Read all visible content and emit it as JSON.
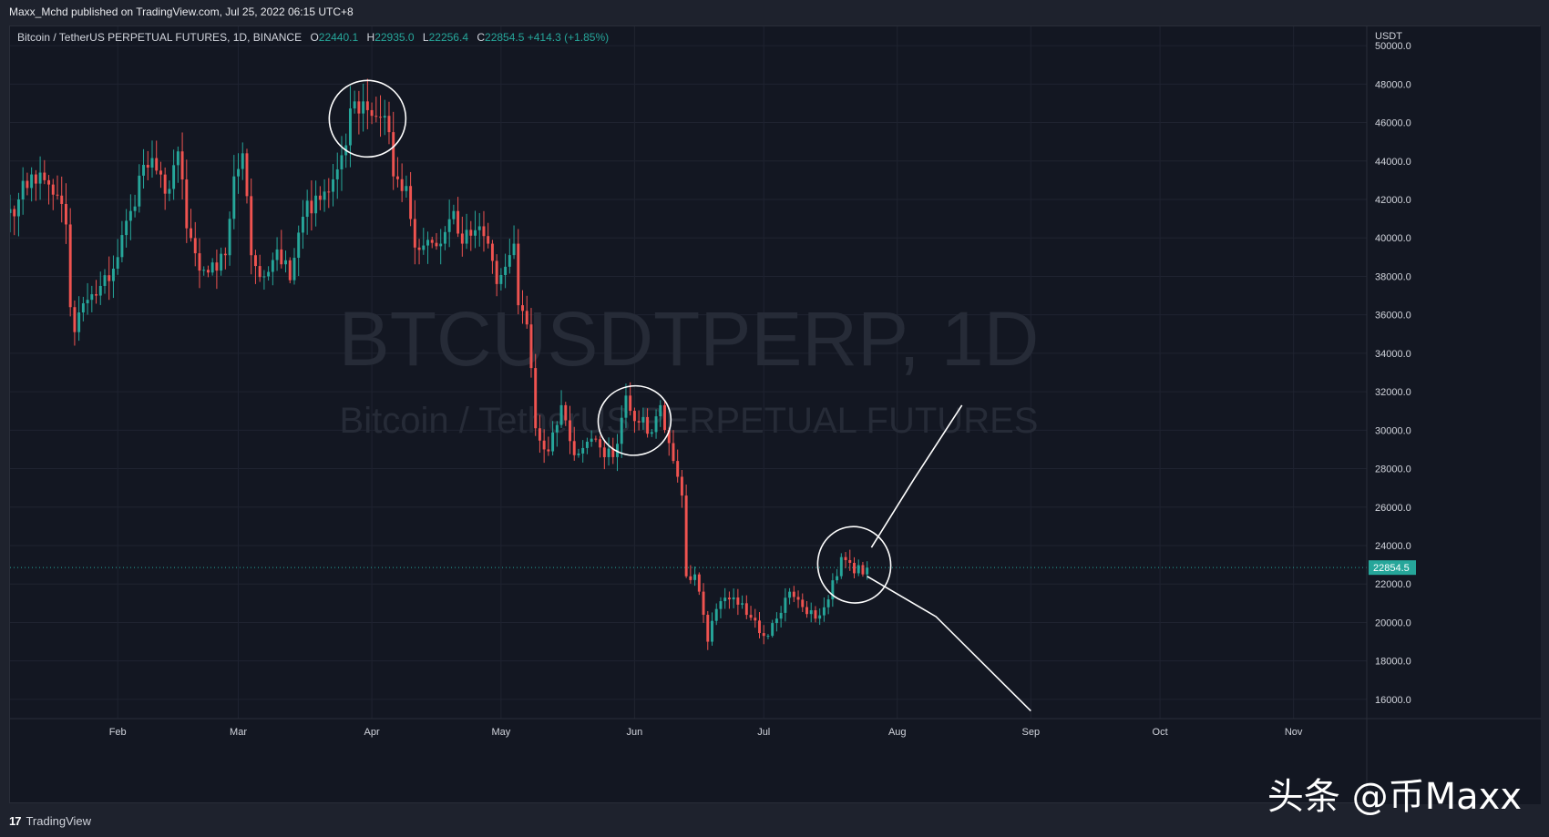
{
  "header": {
    "published": "Maxx_Mchd published on TradingView.com, Jul 25, 2022 06:15 UTC+8"
  },
  "legend": {
    "symbol": "Bitcoin / TetherUS PERPETUAL FUTURES, 1D, BINANCE",
    "o_label": "O",
    "o": "22440.1",
    "h_label": "H",
    "h": "22935.0",
    "l_label": "L",
    "l": "22256.4",
    "c_label": "C",
    "c": "22854.5",
    "change": "+414.3 (+1.85%)"
  },
  "watermark": {
    "main": "BTCUSDTPERP, 1D",
    "sub": "Bitcoin / TetherUS PERPETUAL FUTURES"
  },
  "footer": {
    "logo": "17",
    "label": "TradingView"
  },
  "brand": "头条 @币Maxx",
  "colors": {
    "up": "#26a69a",
    "down": "#ef5350",
    "background": "#131722",
    "text": "#d1d4dc"
  },
  "chart_data": {
    "type": "candlestick",
    "currency_label": "USDT",
    "last_price": "22854.5",
    "last_price_value": 22854.5,
    "y_ticks": [
      50000.0,
      48000.0,
      46000.0,
      44000.0,
      42000.0,
      40000.0,
      38000.0,
      36000.0,
      34000.0,
      32000.0,
      30000.0,
      28000.0,
      26000.0,
      24000.0,
      22000.0,
      20000.0,
      18000.0,
      16000.0
    ],
    "y_tick_labels": [
      "50000.0",
      "48000.0",
      "46000.0",
      "44000.0",
      "42000.0",
      "40000.0",
      "38000.0",
      "36000.0",
      "34000.0",
      "32000.0",
      "30000.0",
      "28000.0",
      "26000.0",
      "24000.0",
      "22000.0",
      "20000.0",
      "18000.0",
      "16000.0"
    ],
    "ylim": [
      15000,
      51000
    ],
    "x_start": "2022-01-07",
    "x_end": "2022-11-18",
    "x_ticks": [
      {
        "label": "Feb",
        "date": "2022-02-01"
      },
      {
        "label": "Mar",
        "date": "2022-03-01"
      },
      {
        "label": "Apr",
        "date": "2022-04-01"
      },
      {
        "label": "May",
        "date": "2022-05-01"
      },
      {
        "label": "Jun",
        "date": "2022-06-01"
      },
      {
        "label": "Jul",
        "date": "2022-07-01"
      },
      {
        "label": "Aug",
        "date": "2022-08-01"
      },
      {
        "label": "Sep",
        "date": "2022-09-01"
      },
      {
        "label": "Oct",
        "date": "2022-10-01"
      },
      {
        "label": "Nov",
        "date": "2022-11-01"
      }
    ],
    "close_path": [
      [
        "2022-01-07",
        41500
      ],
      [
        "2022-01-09",
        42000
      ],
      [
        "2022-01-12",
        43300
      ],
      [
        "2022-01-15",
        43000
      ],
      [
        "2022-01-18",
        42200
      ],
      [
        "2022-01-20",
        40700
      ],
      [
        "2022-01-21",
        36400
      ],
      [
        "2022-01-22",
        35100
      ],
      [
        "2022-01-24",
        36600
      ],
      [
        "2022-01-27",
        37000
      ],
      [
        "2022-01-31",
        38400
      ],
      [
        "2022-02-04",
        41400
      ],
      [
        "2022-02-07",
        43800
      ],
      [
        "2022-02-10",
        43500
      ],
      [
        "2022-02-12",
        42300
      ],
      [
        "2022-02-15",
        44500
      ],
      [
        "2022-02-17",
        40500
      ],
      [
        "2022-02-20",
        38300
      ],
      [
        "2022-02-22",
        38200
      ],
      [
        "2022-02-24",
        38300
      ],
      [
        "2022-02-26",
        39100
      ],
      [
        "2022-02-28",
        43200
      ],
      [
        "2022-03-02",
        44400
      ],
      [
        "2022-03-04",
        39100
      ],
      [
        "2022-03-07",
        38000
      ],
      [
        "2022-03-10",
        39400
      ],
      [
        "2022-03-13",
        37800
      ],
      [
        "2022-03-16",
        41100
      ],
      [
        "2022-03-19",
        42200
      ],
      [
        "2022-03-22",
        42400
      ],
      [
        "2022-03-25",
        44300
      ],
      [
        "2022-03-28",
        47100
      ],
      [
        "2022-03-30",
        47100
      ],
      [
        "2022-04-02",
        46300
      ],
      [
        "2022-04-05",
        45500
      ],
      [
        "2022-04-06",
        43200
      ],
      [
        "2022-04-09",
        42700
      ],
      [
        "2022-04-11",
        39500
      ],
      [
        "2022-04-14",
        39900
      ],
      [
        "2022-04-17",
        39700
      ],
      [
        "2022-04-20",
        41400
      ],
      [
        "2022-04-22",
        39700
      ],
      [
        "2022-04-25",
        40400
      ],
      [
        "2022-04-28",
        39700
      ],
      [
        "2022-04-30",
        37600
      ],
      [
        "2022-05-02",
        38500
      ],
      [
        "2022-05-04",
        39700
      ],
      [
        "2022-05-05",
        36500
      ],
      [
        "2022-05-07",
        35500
      ],
      [
        "2022-05-09",
        30100
      ],
      [
        "2022-05-11",
        29000
      ],
      [
        "2022-05-12",
        28900
      ],
      [
        "2022-05-15",
        31300
      ],
      [
        "2022-05-18",
        28700
      ],
      [
        "2022-05-21",
        29400
      ],
      [
        "2022-05-24",
        29100
      ],
      [
        "2022-05-27",
        28600
      ],
      [
        "2022-05-30",
        31800
      ],
      [
        "2022-06-02",
        30400
      ],
      [
        "2022-06-05",
        29900
      ],
      [
        "2022-06-07",
        31300
      ],
      [
        "2022-06-10",
        28400
      ],
      [
        "2022-06-12",
        26600
      ],
      [
        "2022-06-13",
        22400
      ],
      [
        "2022-06-15",
        22500
      ],
      [
        "2022-06-18",
        19000
      ],
      [
        "2022-06-20",
        20700
      ],
      [
        "2022-06-23",
        21200
      ],
      [
        "2022-06-26",
        21000
      ],
      [
        "2022-06-29",
        20100
      ],
      [
        "2022-07-01",
        19300
      ],
      [
        "2022-07-04",
        20200
      ],
      [
        "2022-07-07",
        21600
      ],
      [
        "2022-07-10",
        20800
      ],
      [
        "2022-07-13",
        20200
      ],
      [
        "2022-07-16",
        21200
      ],
      [
        "2022-07-19",
        23400
      ],
      [
        "2022-07-21",
        23100
      ],
      [
        "2022-07-24",
        22500
      ],
      [
        "2022-07-25",
        22854.5
      ]
    ],
    "annotations": {
      "circles": [
        "2022-03-31",
        "2022-06-01",
        "2022-07-22"
      ],
      "scenario_up": [
        [
          "2022-07-26",
          23900
        ],
        [
          "2022-08-05",
          27500
        ],
        [
          "2022-08-16",
          31300
        ]
      ],
      "scenario_down": [
        [
          "2022-07-25",
          22400
        ],
        [
          "2022-08-10",
          20300
        ],
        [
          "2022-09-01",
          15400
        ]
      ]
    }
  }
}
